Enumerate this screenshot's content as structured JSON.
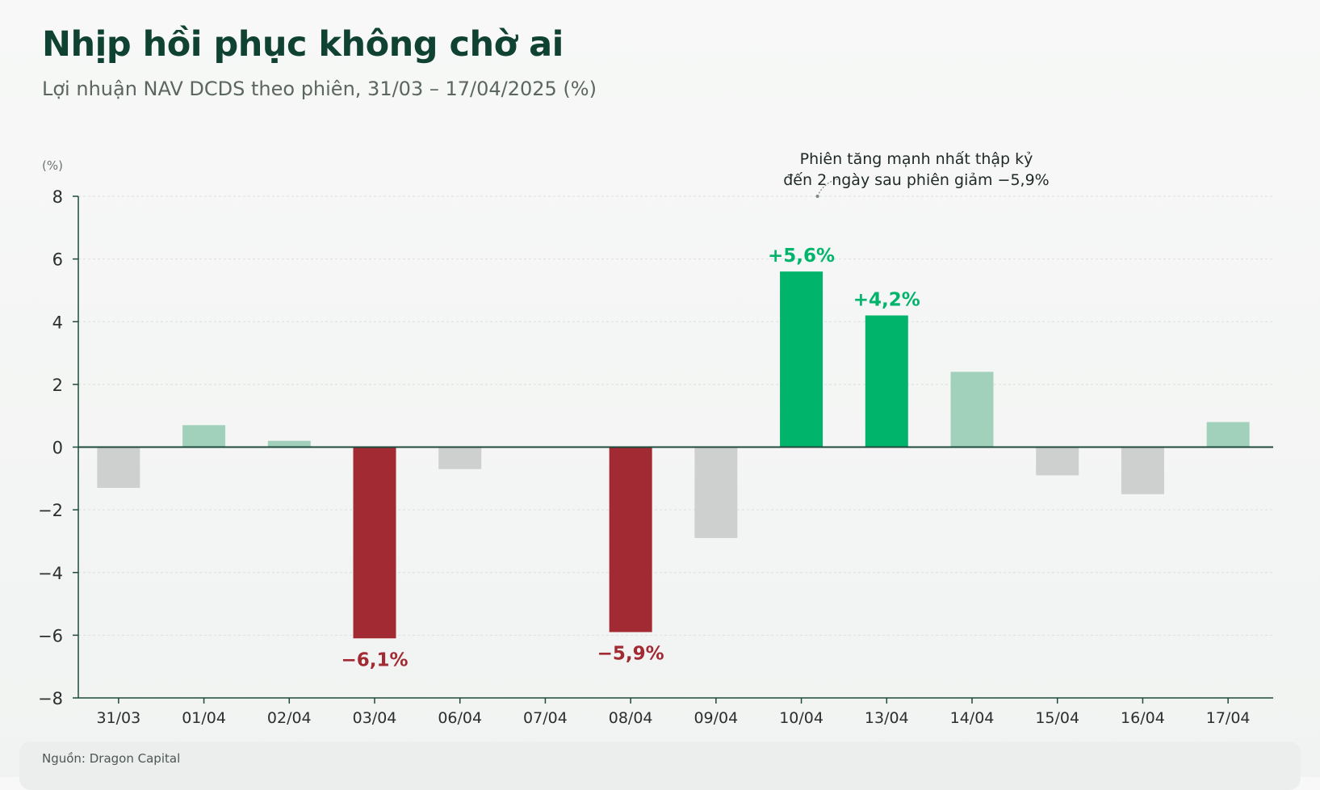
{
  "header": {
    "title": "Nhịp hồi phục không chờ ai",
    "subtitle": "Lợi nhuận NAV DCDS theo phiên, 31/03 – 17/04/2025 (%)"
  },
  "footer": {
    "source": "Nguồn: Dragon Capital"
  },
  "colors": {
    "strong_up": "#00b46b",
    "mild_up": "#a2d1bb",
    "strong_down": "#a22a32",
    "mild_down": "#cdd0cf",
    "axis": "#1f4a3c",
    "title": "#0f4232"
  },
  "chart_data": {
    "type": "bar",
    "ylabel": "(%)",
    "ylim": [
      -8,
      8
    ],
    "yticks": [
      8,
      6,
      4,
      2,
      0,
      -2,
      -4,
      -6,
      -8
    ],
    "ytick_labels": [
      "8",
      "6",
      "4",
      "2",
      "0",
      "−2",
      "−4",
      "−6",
      "−8"
    ],
    "grid": true,
    "categories": [
      "31/03",
      "01/04",
      "02/04",
      "03/04",
      "06/04",
      "07/04",
      "08/04",
      "09/04",
      "10/04",
      "13/04",
      "14/04",
      "15/04",
      "16/04",
      "17/04"
    ],
    "values": [
      -1.3,
      0.7,
      0.2,
      -6.1,
      -0.7,
      0.0,
      -5.9,
      -2.9,
      5.6,
      4.2,
      2.4,
      -0.9,
      -1.5,
      0.8
    ],
    "highlight": [
      "mild",
      "mild",
      "mild",
      "strong",
      "mild",
      "mild",
      "strong",
      "mild",
      "strong",
      "strong",
      "mild",
      "mild",
      "mild",
      "mild"
    ],
    "data_labels": [
      {
        "index": 3,
        "text": "−6,1%"
      },
      {
        "index": 6,
        "text": "−5,9%"
      },
      {
        "index": 8,
        "text": "+5,6%"
      },
      {
        "index": 9,
        "text": "+4,2%"
      }
    ],
    "annotation": {
      "lines": [
        "Phiên tăng mạnh nhất thập kỷ",
        "đến 2 ngày sau phiên giảm −5,9%"
      ],
      "target_index": 8,
      "target_value": 8
    }
  }
}
